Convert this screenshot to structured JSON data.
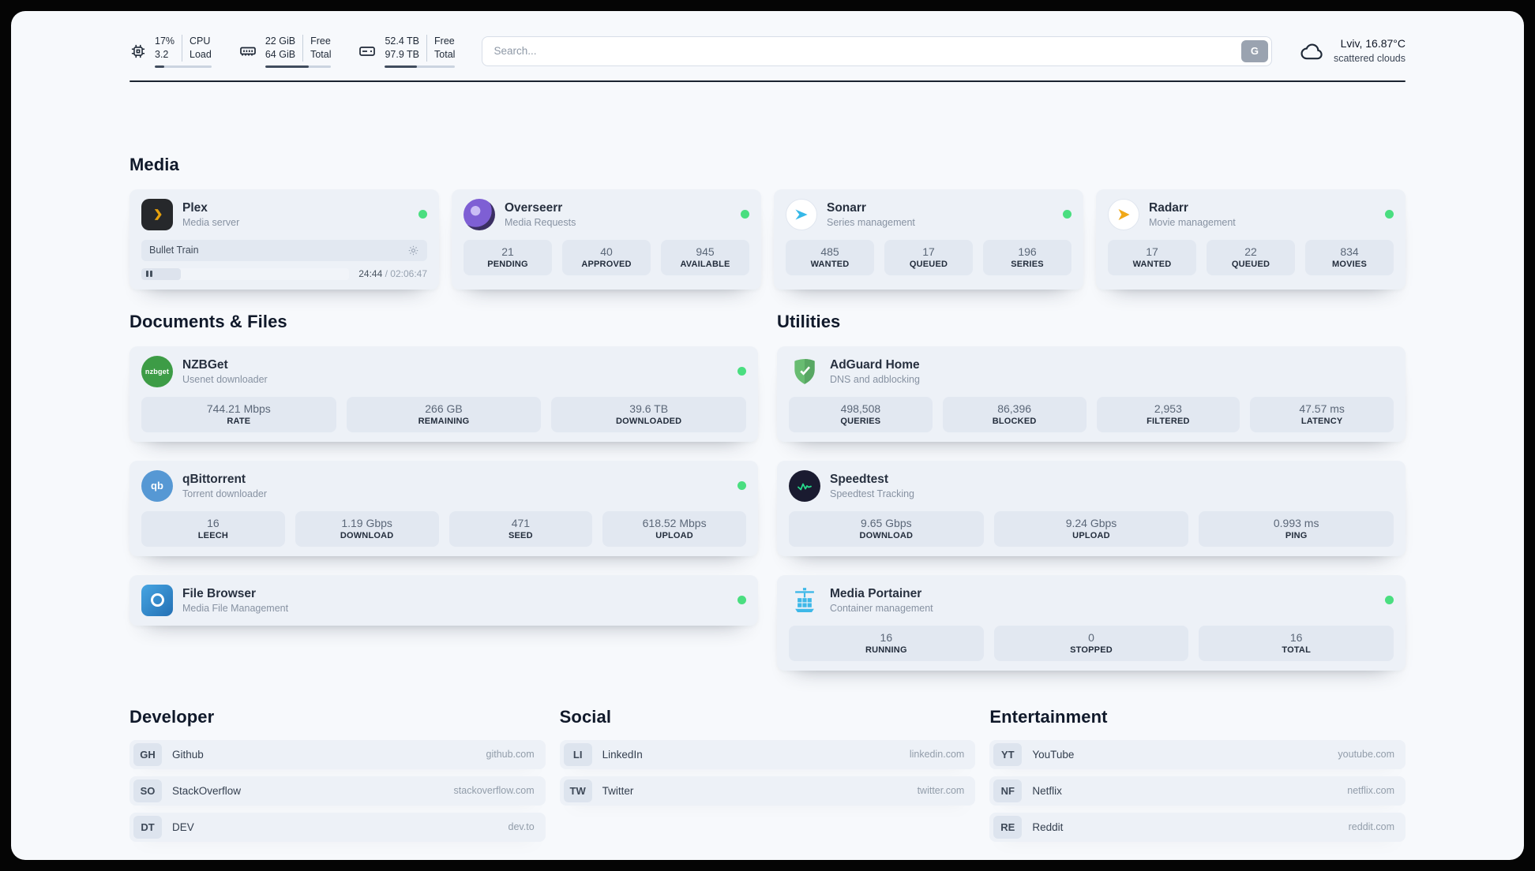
{
  "topbar": {
    "cpu": {
      "value1": "17%",
      "value2": "3.2",
      "label1": "CPU",
      "label2": "Load",
      "progress_pct": 17
    },
    "ram": {
      "value1": "22 GiB",
      "value2": "64 GiB",
      "label1": "Free",
      "label2": "Total",
      "progress_pct": 66
    },
    "disk": {
      "value1": "52.4 TB",
      "value2": "97.9 TB",
      "label1": "Free",
      "label2": "Total",
      "progress_pct": 46
    },
    "search": {
      "placeholder": "Search...",
      "button_label": "G"
    },
    "weather": {
      "location": "Lviv, 16.87°C",
      "condition": "scattered clouds"
    }
  },
  "sections": {
    "media": "Media",
    "documents": "Documents & Files",
    "utilities": "Utilities",
    "developer": "Developer",
    "social": "Social",
    "entertainment": "Entertainment"
  },
  "services": {
    "plex": {
      "name": "Plex",
      "subtitle": "Media server",
      "now_playing": "Bullet Train",
      "time_elapsed": "24:44",
      "time_total": " / 02:06:47",
      "progress_pct": 19
    },
    "overseerr": {
      "name": "Overseerr",
      "subtitle": "Media Requests",
      "stats": [
        {
          "value": "21",
          "label": "PENDING"
        },
        {
          "value": "40",
          "label": "APPROVED"
        },
        {
          "value": "945",
          "label": "AVAILABLE"
        }
      ]
    },
    "sonarr": {
      "name": "Sonarr",
      "subtitle": "Series management",
      "stats": [
        {
          "value": "485",
          "label": "WANTED"
        },
        {
          "value": "17",
          "label": "QUEUED"
        },
        {
          "value": "196",
          "label": "SERIES"
        }
      ]
    },
    "radarr": {
      "name": "Radarr",
      "subtitle": "Movie management",
      "stats": [
        {
          "value": "17",
          "label": "WANTED"
        },
        {
          "value": "22",
          "label": "QUEUED"
        },
        {
          "value": "834",
          "label": "MOVIES"
        }
      ]
    },
    "nzbget": {
      "name": "NZBGet",
      "subtitle": "Usenet downloader",
      "icon_text": "nzbget",
      "stats": [
        {
          "value": "744.21 Mbps",
          "label": "RATE"
        },
        {
          "value": "266 GB",
          "label": "REMAINING"
        },
        {
          "value": "39.6 TB",
          "label": "DOWNLOADED"
        }
      ]
    },
    "qbittorrent": {
      "name": "qBittorrent",
      "subtitle": "Torrent downloader",
      "icon_text": "qb",
      "stats": [
        {
          "value": "16",
          "label": "LEECH"
        },
        {
          "value": "1.19 Gbps",
          "label": "DOWNLOAD"
        },
        {
          "value": "471",
          "label": "SEED"
        },
        {
          "value": "618.52 Mbps",
          "label": "UPLOAD"
        }
      ]
    },
    "filebrowser": {
      "name": "File Browser",
      "subtitle": "Media File Management"
    },
    "adguard": {
      "name": "AdGuard Home",
      "subtitle": "DNS and adblocking",
      "stats": [
        {
          "value": "498,508",
          "label": "QUERIES"
        },
        {
          "value": "86,396",
          "label": "BLOCKED"
        },
        {
          "value": "2,953",
          "label": "FILTERED"
        },
        {
          "value": "47.57 ms",
          "label": "LATENCY"
        }
      ]
    },
    "speedtest": {
      "name": "Speedtest",
      "subtitle": "Speedtest Tracking",
      "stats": [
        {
          "value": "9.65 Gbps",
          "label": "DOWNLOAD"
        },
        {
          "value": "9.24 Gbps",
          "label": "UPLOAD"
        },
        {
          "value": "0.993 ms",
          "label": "PING"
        }
      ]
    },
    "portainer": {
      "name": "Media Portainer",
      "subtitle": "Container management",
      "stats": [
        {
          "value": "16",
          "label": "RUNNING"
        },
        {
          "value": "0",
          "label": "STOPPED"
        },
        {
          "value": "16",
          "label": "TOTAL"
        }
      ]
    }
  },
  "links": {
    "developer": [
      {
        "badge": "GH",
        "name": "Github",
        "url": "github.com"
      },
      {
        "badge": "SO",
        "name": "StackOverflow",
        "url": "stackoverflow.com"
      },
      {
        "badge": "DT",
        "name": "DEV",
        "url": "dev.to"
      }
    ],
    "social": [
      {
        "badge": "LI",
        "name": "LinkedIn",
        "url": "linkedin.com"
      },
      {
        "badge": "TW",
        "name": "Twitter",
        "url": "twitter.com"
      }
    ],
    "entertainment": [
      {
        "badge": "YT",
        "name": "YouTube",
        "url": "youtube.com"
      },
      {
        "badge": "NF",
        "name": "Netflix",
        "url": "netflix.com"
      },
      {
        "badge": "RE",
        "name": "Reddit",
        "url": "reddit.com"
      }
    ]
  },
  "colors": {
    "status_ok": "#4ade80",
    "plex_accent": "#e5a00d",
    "divider": "#1b2430"
  }
}
